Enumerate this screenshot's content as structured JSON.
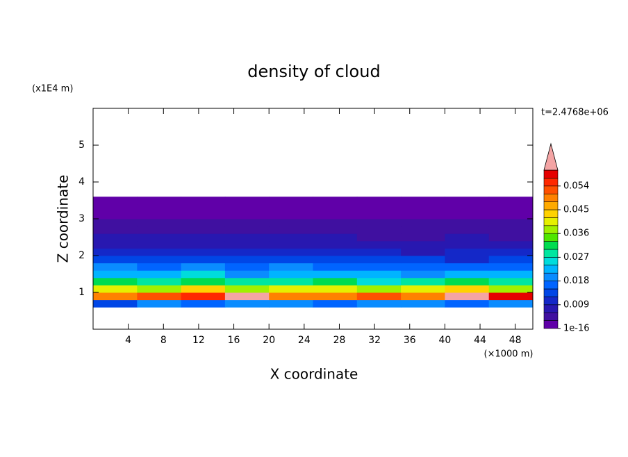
{
  "chart_data": {
    "type": "contour",
    "title": "density of cloud",
    "x_label": "X coordinate",
    "y_label": "Z coordinate",
    "x_unit": "(×1000 m)",
    "y_unit": "(x1E4 m)",
    "annotation": "t=2.4768e+06",
    "xlim": [
      0,
      50
    ],
    "xticks": [
      4,
      8,
      12,
      16,
      20,
      24,
      28,
      32,
      36,
      40,
      44,
      48
    ],
    "ylim": [
      0,
      6
    ],
    "yticks": [
      1,
      2,
      3,
      4,
      5
    ],
    "x": [
      2.5,
      7.5,
      12.5,
      17.5,
      22.5,
      27.5,
      32.5,
      37.5,
      42.5,
      47.5
    ],
    "y": [
      0.7,
      0.9,
      1.1,
      1.3,
      1.5,
      1.7,
      1.9,
      2.1,
      2.3,
      2.5,
      2.7,
      2.9,
      3.1,
      3.3,
      3.5
    ],
    "z": [
      [
        0.014,
        0.02,
        0.016,
        0.018,
        0.02,
        0.015,
        0.018,
        0.02,
        0.016,
        0.018
      ],
      [
        0.05,
        0.052,
        0.055,
        0.062,
        0.05,
        0.048,
        0.053,
        0.05,
        0.061,
        0.058
      ],
      [
        0.04,
        0.038,
        0.042,
        0.036,
        0.039,
        0.041,
        0.037,
        0.04,
        0.043,
        0.038
      ],
      [
        0.03,
        0.028,
        0.031,
        0.027,
        0.029,
        0.03,
        0.026,
        0.028,
        0.03,
        0.027
      ],
      [
        0.023,
        0.021,
        0.024,
        0.02,
        0.022,
        0.023,
        0.021,
        0.02,
        0.022,
        0.021
      ],
      [
        0.018,
        0.016,
        0.019,
        0.017,
        0.018,
        0.016,
        0.017,
        0.016,
        0.015,
        0.017
      ],
      [
        0.013,
        0.014,
        0.012,
        0.013,
        0.014,
        0.012,
        0.013,
        0.012,
        0.011,
        0.012
      ],
      [
        0.01,
        0.009,
        0.01,
        0.011,
        0.009,
        0.01,
        0.009,
        0.008,
        0.009,
        0.01
      ],
      [
        0.008,
        0.007,
        0.008,
        0.007,
        0.008,
        0.007,
        0.007,
        0.006,
        0.007,
        0.007
      ],
      [
        0.006,
        0.006,
        0.007,
        0.006,
        0.006,
        0.006,
        0.005,
        0.005,
        0.006,
        0.005
      ],
      [
        0.005,
        0.005,
        0.005,
        0.005,
        0.005,
        0.005,
        0.004,
        0.004,
        0.004,
        0.004
      ],
      [
        0.004,
        0.004,
        0.004,
        0.003,
        0.003,
        0.003,
        0.003,
        0.003,
        0.003,
        0.003
      ],
      [
        0.002,
        0.002,
        0.002,
        0.002,
        0.002,
        0.002,
        0.002,
        0.002,
        0.002,
        0.002
      ],
      [
        0.001,
        0.001,
        0.001,
        0.001,
        0.001,
        0.001,
        0.001,
        0.001,
        0.001,
        0.001
      ],
      [
        0.001,
        0.001,
        0.0005,
        0.0005,
        0.0005,
        0.0005,
        0.0005,
        0.001,
        0.001,
        0.001
      ]
    ],
    "levels": [
      1e-16,
      0.003,
      0.006,
      0.009,
      0.012,
      0.015,
      0.018,
      0.021,
      0.024,
      0.027,
      0.03,
      0.033,
      0.036,
      0.039,
      0.042,
      0.045,
      0.048,
      0.051,
      0.054,
      0.057,
      0.06
    ],
    "colors": [
      "#6000a8",
      "#4010a0",
      "#2818b0",
      "#1428c8",
      "#0046e6",
      "#0064ff",
      "#0a8cff",
      "#00b4ff",
      "#00dcdc",
      "#00e6a0",
      "#00dc50",
      "#50e600",
      "#a0f000",
      "#e6f000",
      "#ffd200",
      "#ffaa00",
      "#ff8200",
      "#ff5000",
      "#ff2800",
      "#e60000",
      "#f4a4a4"
    ],
    "colorbar_ticks": [
      1e-16,
      0.009,
      0.018,
      0.027,
      0.036,
      0.045,
      0.054
    ]
  }
}
